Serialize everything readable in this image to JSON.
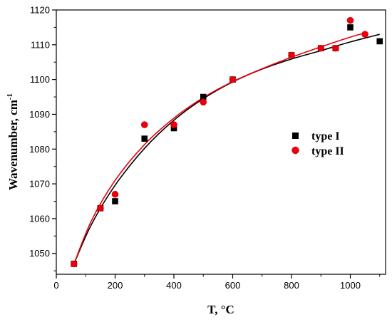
{
  "chart_data": {
    "type": "scatter",
    "xlabel": "T, °C",
    "ylabel_main": "Wavenumber, cm",
    "ylabel_sup": "-1",
    "xlim": [
      0,
      1120
    ],
    "ylim": [
      1044,
      1120
    ],
    "x_ticks": [
      0,
      200,
      400,
      600,
      800,
      1000
    ],
    "y_ticks": [
      1050,
      1060,
      1070,
      1080,
      1090,
      1100,
      1110,
      1120
    ],
    "x_minor_step": 100,
    "y_minor_step": 5,
    "legend_position": "right",
    "series": [
      {
        "name": "type I",
        "marker": "square",
        "color": "#000000",
        "points": [
          [
            60,
            1047
          ],
          [
            150,
            1063
          ],
          [
            200,
            1065
          ],
          [
            300,
            1083
          ],
          [
            400,
            1086
          ],
          [
            500,
            1095
          ],
          [
            600,
            1100
          ],
          [
            800,
            1107
          ],
          [
            900,
            1109
          ],
          [
            950,
            1109
          ],
          [
            1000,
            1115
          ],
          [
            1100,
            1111
          ]
        ],
        "fit": [
          [
            60,
            1047
          ],
          [
            120,
            1058.4
          ],
          [
            200,
            1069.6
          ],
          [
            300,
            1080.2
          ],
          [
            400,
            1088.3
          ],
          [
            500,
            1094.5
          ],
          [
            600,
            1099.3
          ],
          [
            700,
            1103.0
          ],
          [
            800,
            1105.9
          ],
          [
            900,
            1108.3
          ],
          [
            1000,
            1110.8
          ],
          [
            1100,
            1113.0
          ]
        ]
      },
      {
        "name": "type II",
        "marker": "circle",
        "color": "#e8000b",
        "points": [
          [
            60,
            1047
          ],
          [
            150,
            1063
          ],
          [
            200,
            1067
          ],
          [
            300,
            1087
          ],
          [
            400,
            1087
          ],
          [
            500,
            1093.5
          ],
          [
            600,
            1100
          ],
          [
            800,
            1107
          ],
          [
            900,
            1109
          ],
          [
            950,
            1109
          ],
          [
            1000,
            1117
          ],
          [
            1050,
            1113
          ]
        ],
        "fit": [
          [
            60,
            1047
          ],
          [
            120,
            1059.5
          ],
          [
            200,
            1071.0
          ],
          [
            300,
            1081.3
          ],
          [
            400,
            1088.9
          ],
          [
            500,
            1094.8
          ],
          [
            600,
            1099.4
          ],
          [
            700,
            1103.1
          ],
          [
            800,
            1106.4
          ],
          [
            900,
            1109.4
          ],
          [
            1000,
            1112.2
          ],
          [
            1050,
            1113.4
          ]
        ]
      }
    ]
  }
}
